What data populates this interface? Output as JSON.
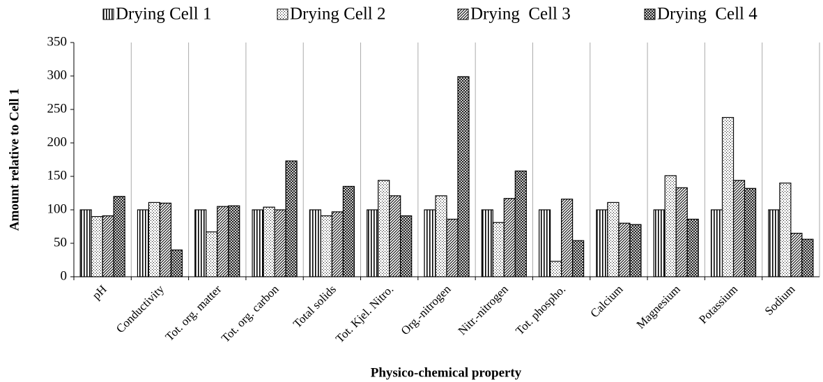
{
  "chart_data": {
    "type": "bar",
    "x_label": "Physico-chemical property",
    "y_label": "Amount relative to Cell 1",
    "categories": [
      "pH",
      "Conductivity",
      "Tot. org. matter",
      "Tot. org. carbon",
      "Total solids",
      "Tot. Kjel. Nitro.",
      "Org.-nitrogen",
      "Nitr.-nitrogen",
      "Tot. phospho.",
      "Calcium",
      "Magnesium",
      "Potassium",
      "Sodium"
    ],
    "series": [
      {
        "name": "Drying Cell 1",
        "color": "#000000",
        "pattern": "vertical",
        "values": [
          100,
          100,
          100,
          100,
          100,
          100,
          100,
          100,
          100,
          100,
          100,
          100,
          100
        ]
      },
      {
        "name": "Drying Cell 2",
        "color": "#000000",
        "pattern": "dots",
        "values": [
          90,
          111,
          67,
          104,
          91,
          144,
          121,
          81,
          23,
          111,
          151,
          238,
          140
        ]
      },
      {
        "name": "Drying  Cell 3",
        "color": "#000000",
        "pattern": "diagonal",
        "values": [
          91,
          110,
          105,
          100,
          97,
          121,
          86,
          117,
          116,
          80,
          133,
          144,
          65
        ]
      },
      {
        "name": "Drying  Cell 4",
        "color": "#000000",
        "pattern": "crosshatch",
        "values": [
          120,
          40,
          106,
          173,
          135,
          91,
          299,
          158,
          54,
          78,
          86,
          132,
          56
        ]
      }
    ],
    "ylim": [
      0,
      350
    ],
    "yticks": [
      0,
      50,
      100,
      150,
      200,
      250,
      300,
      350
    ],
    "grid": "x",
    "legend": "top"
  }
}
